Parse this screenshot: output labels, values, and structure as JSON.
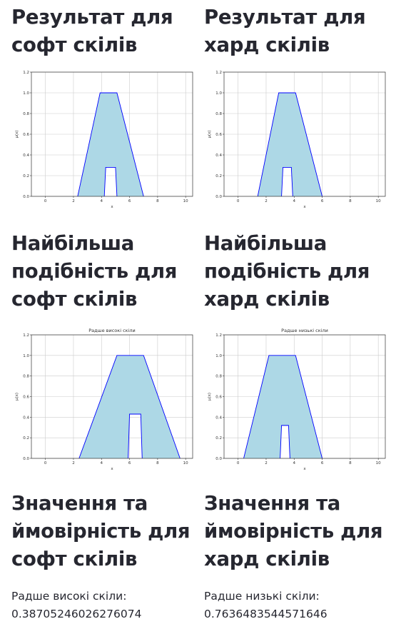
{
  "left": {
    "result_heading": "Результат для софт скілів",
    "similarity_heading": "Найбільша подібність для софт скілів",
    "value_heading": "Значення та ймовірність для софт скілів",
    "value_label": "Радше високі скіли:",
    "value": "0.38705246026276074"
  },
  "right": {
    "result_heading": "Результат для хард скілів",
    "similarity_heading": "Найбільша подібність для хард скілів",
    "value_heading": "Значення та ймовірність для хард скілів",
    "value_label": "Радше низькі скіли:",
    "value": "0.7636483544571646"
  },
  "colors": {
    "fill": "#add8e6",
    "line": "#0000ff",
    "grid": "#cccccc"
  },
  "chart_data": [
    {
      "type": "area",
      "title": "",
      "xlabel": "x",
      "ylabel": "μ(x)",
      "xlim": [
        -1,
        10.5
      ],
      "ylim": [
        0,
        1.2
      ],
      "xticks": [
        0,
        2,
        4,
        6,
        8,
        10
      ],
      "yticks": [
        0.0,
        0.2,
        0.4,
        0.6,
        0.8,
        1.0,
        1.2
      ],
      "grid": true,
      "outer": {
        "x": [
          2.3,
          3.9,
          5.1,
          7.0
        ],
        "y": [
          0,
          1,
          1,
          0
        ]
      },
      "inner": {
        "x": [
          4.2,
          4.3,
          5.0,
          5.1
        ],
        "y": [
          0,
          0.28,
          0.28,
          0
        ]
      }
    },
    {
      "type": "area",
      "title": "",
      "xlabel": "x",
      "ylabel": "μ(x)",
      "xlim": [
        -1,
        10.5
      ],
      "ylim": [
        0,
        1.2
      ],
      "xticks": [
        0,
        2,
        4,
        6,
        8,
        10
      ],
      "yticks": [
        0.0,
        0.2,
        0.4,
        0.6,
        0.8,
        1.0,
        1.2
      ],
      "grid": true,
      "outer": {
        "x": [
          1.4,
          2.9,
          4.1,
          6.0
        ],
        "y": [
          0,
          1,
          1,
          0
        ]
      },
      "inner": {
        "x": [
          3.1,
          3.2,
          3.8,
          3.9
        ],
        "y": [
          0,
          0.28,
          0.28,
          0
        ]
      }
    },
    {
      "type": "area",
      "title": "Радше високі скіли",
      "xlabel": "x",
      "ylabel": "μ(x)",
      "xlim": [
        -1,
        10.5
      ],
      "ylim": [
        0,
        1.2
      ],
      "xticks": [
        0,
        2,
        4,
        6,
        8,
        10
      ],
      "yticks": [
        0.0,
        0.2,
        0.4,
        0.6,
        0.8,
        1.0,
        1.2
      ],
      "grid": true,
      "outer": {
        "x": [
          2.4,
          5.1,
          7.0,
          9.6
        ],
        "y": [
          0,
          1,
          1,
          0
        ]
      },
      "inner": {
        "x": [
          5.9,
          6.0,
          6.8,
          6.9
        ],
        "y": [
          0,
          0.43,
          0.43,
          0
        ]
      }
    },
    {
      "type": "area",
      "title": "Радше низькі скіли",
      "xlabel": "x",
      "ylabel": "μ(x)",
      "xlim": [
        -1,
        10.5
      ],
      "ylim": [
        0,
        1.2
      ],
      "xticks": [
        0,
        2,
        4,
        6,
        8,
        10
      ],
      "yticks": [
        0.0,
        0.2,
        0.4,
        0.6,
        0.8,
        1.0,
        1.2
      ],
      "grid": true,
      "outer": {
        "x": [
          0.4,
          2.2,
          4.1,
          6.0
        ],
        "y": [
          0,
          1,
          1,
          0
        ]
      },
      "inner": {
        "x": [
          3.0,
          3.1,
          3.6,
          3.7
        ],
        "y": [
          0,
          0.32,
          0.32,
          0
        ]
      }
    }
  ]
}
